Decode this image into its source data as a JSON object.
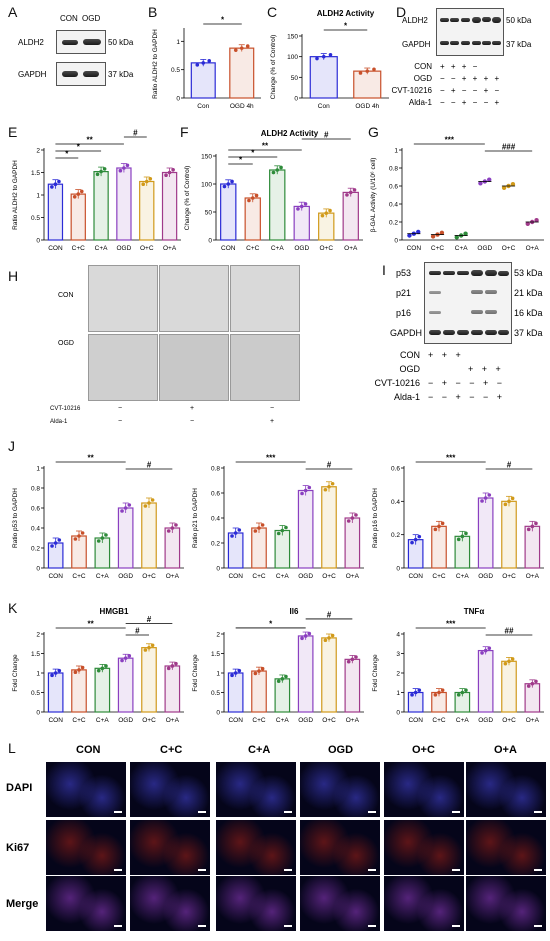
{
  "panels": {
    "A": "A",
    "B": "B",
    "C": "C",
    "D": "D",
    "E": "E",
    "F": "F",
    "G": "G",
    "H": "H",
    "I": "I",
    "J": "J",
    "K": "K",
    "L": "L"
  },
  "blotA": {
    "lanes": [
      "CON",
      "OGD"
    ],
    "rows": [
      "ALDH2",
      "GAPDH"
    ],
    "sizes": [
      "50 kDa",
      "37 kDa"
    ]
  },
  "blotD": {
    "rows": [
      "ALDH2",
      "GAPDH"
    ],
    "sizes": [
      "50 kDa",
      "37 kDa"
    ],
    "conditions": [
      {
        "name": "CON",
        "marks": "+ + + −"
      },
      {
        "name": "OGD",
        "marks": "− − + + + +"
      },
      {
        "name": "CVT-10216",
        "marks": "− + − − + −"
      },
      {
        "name": "Alda-1",
        "marks": "− − + − − +"
      }
    ]
  },
  "blotI": {
    "rows": [
      "p53",
      "p21",
      "p16",
      "GAPDH"
    ],
    "sizes": [
      "53 kDa",
      "21 kDa",
      "16 kDa",
      "37 kDa"
    ],
    "conditions": [
      {
        "name": "CON",
        "marks": "+ + +"
      },
      {
        "name": "OGD",
        "marks": "+ + +"
      },
      {
        "name": "CVT-10216",
        "marks": "− + − − + −"
      },
      {
        "name": "Alda-1",
        "marks": "− − + − − +"
      }
    ]
  },
  "H": {
    "rows": [
      "CON",
      "OGD"
    ],
    "conditions": [
      {
        "name": "CVT-10216",
        "marks": [
          "−",
          "+",
          "−"
        ]
      },
      {
        "name": "Alda-1",
        "marks": [
          "−",
          "−",
          "+"
        ]
      }
    ]
  },
  "L": {
    "columns": [
      "CON",
      "C+C",
      "C+A",
      "OGD",
      "O+C",
      "O+A"
    ],
    "rows": [
      "DAPI",
      "Ki67",
      "Merge"
    ]
  },
  "colors": {
    "CON": "#2b2bd6",
    "C+C": "#c8502a",
    "C+A": "#2e8b3a",
    "OGD": "#8a3fc0",
    "O+C": "#d19a1a",
    "O+A": "#a03a8a"
  },
  "chart_data": [
    {
      "id": "B",
      "type": "bar",
      "title": "",
      "ylabel": "Ratio ALDH2 to GAPDH",
      "categories": [
        "Con",
        "OGD 4h"
      ],
      "values": [
        0.62,
        0.88
      ],
      "ylim": [
        0,
        1.2
      ],
      "yticks": [
        0.0,
        0.5,
        1.0
      ],
      "sig": [
        {
          "from": 0,
          "to": 1,
          "label": "*"
        }
      ],
      "colors": [
        "#2b2bd6",
        "#c8502a"
      ]
    },
    {
      "id": "C",
      "type": "bar",
      "title": "ALDH2 Activity",
      "ylabel": "Change (% of Control)",
      "categories": [
        "Con",
        "OGD 4h"
      ],
      "values": [
        100,
        65
      ],
      "ylim": [
        0,
        150
      ],
      "yticks": [
        0,
        50,
        100,
        150
      ],
      "sig": [
        {
          "from": 0,
          "to": 1,
          "label": "*"
        }
      ],
      "colors": [
        "#2b2bd6",
        "#c8502a"
      ]
    },
    {
      "id": "E",
      "type": "bar",
      "title": "",
      "ylabel": "Ratio ALDH2 to GAPDH",
      "categories": [
        "CON",
        "C+C",
        "C+A",
        "OGD",
        "O+C",
        "O+A"
      ],
      "values": [
        1.24,
        1.02,
        1.52,
        1.6,
        1.3,
        1.5
      ],
      "ylim": [
        0,
        2.0
      ],
      "yticks": [
        0.0,
        0.5,
        1.0,
        1.5,
        2.0
      ],
      "sig": [
        {
          "from": 0,
          "to": 3,
          "label": "**"
        },
        {
          "from": 0,
          "to": 2,
          "label": "*"
        },
        {
          "from": 0,
          "to": 1,
          "label": "*"
        },
        {
          "from": 3,
          "to": 4,
          "label": "#"
        }
      ],
      "colors": [
        "#2b2bd6",
        "#c8502a",
        "#2e8b3a",
        "#8a3fc0",
        "#d19a1a",
        "#a03a8a"
      ]
    },
    {
      "id": "F",
      "type": "bar",
      "title": "ALDH2 Activity",
      "ylabel": "Change (% of Control)",
      "categories": [
        "CON",
        "C+C",
        "C+A",
        "OGD",
        "O+C",
        "O+A"
      ],
      "values": [
        100,
        75,
        125,
        60,
        48,
        85
      ],
      "ylim": [
        0,
        150
      ],
      "yticks": [
        0,
        50,
        100,
        150
      ],
      "sig": [
        {
          "from": 0,
          "to": 3,
          "label": "**"
        },
        {
          "from": 0,
          "to": 2,
          "label": "*"
        },
        {
          "from": 0,
          "to": 1,
          "label": "*"
        },
        {
          "from": 3,
          "to": 5,
          "label": "#"
        }
      ],
      "colors": [
        "#2b2bd6",
        "#c8502a",
        "#2e8b3a",
        "#8a3fc0",
        "#d19a1a",
        "#a03a8a"
      ]
    },
    {
      "id": "G",
      "type": "scatter",
      "title": "",
      "ylabel": "β-GAL Activity (U/10⁶ cell)",
      "categories": [
        "CON",
        "C+C",
        "C+A",
        "OGD",
        "O+C",
        "O+A"
      ],
      "values": [
        0.07,
        0.06,
        0.05,
        0.65,
        0.6,
        0.2
      ],
      "ylim": [
        0,
        1.0
      ],
      "yticks": [
        0.0,
        0.2,
        0.4,
        0.6,
        0.8,
        1.0
      ],
      "sig": [
        {
          "from": 0,
          "to": 3,
          "label": "***"
        },
        {
          "from": 3,
          "to": 5,
          "label": "###"
        }
      ],
      "colors": [
        "#2b2bd6",
        "#c8502a",
        "#2e8b3a",
        "#8a3fc0",
        "#d19a1a",
        "#a03a8a"
      ]
    },
    {
      "id": "J1",
      "type": "bar",
      "title": "",
      "ylabel": "Ratio p53 to GAPDH",
      "categories": [
        "CON",
        "C+C",
        "C+A",
        "OGD",
        "O+C",
        "O+A"
      ],
      "values": [
        0.25,
        0.32,
        0.3,
        0.6,
        0.65,
        0.4
      ],
      "ylim": [
        0,
        1.0
      ],
      "yticks": [
        0.0,
        0.2,
        0.4,
        0.6,
        0.8,
        1.0
      ],
      "sig": [
        {
          "from": 0,
          "to": 3,
          "label": "**"
        },
        {
          "from": 3,
          "to": 5,
          "label": "#"
        }
      ],
      "colors": [
        "#2b2bd6",
        "#c8502a",
        "#2e8b3a",
        "#8a3fc0",
        "#d19a1a",
        "#a03a8a"
      ]
    },
    {
      "id": "J2",
      "type": "bar",
      "title": "",
      "ylabel": "Ratio p21 to GAPDH",
      "categories": [
        "CON",
        "C+C",
        "C+A",
        "OGD",
        "O+C",
        "O+A"
      ],
      "values": [
        0.28,
        0.32,
        0.3,
        0.62,
        0.65,
        0.4
      ],
      "ylim": [
        0,
        0.8
      ],
      "yticks": [
        0.0,
        0.2,
        0.4,
        0.6,
        0.8
      ],
      "sig": [
        {
          "from": 0,
          "to": 3,
          "label": "***"
        },
        {
          "from": 3,
          "to": 5,
          "label": "#"
        }
      ],
      "colors": [
        "#2b2bd6",
        "#c8502a",
        "#2e8b3a",
        "#8a3fc0",
        "#d19a1a",
        "#a03a8a"
      ]
    },
    {
      "id": "J3",
      "type": "bar",
      "title": "",
      "ylabel": "Ratio p16 to GAPDH",
      "categories": [
        "CON",
        "C+C",
        "C+A",
        "OGD",
        "O+C",
        "O+A"
      ],
      "values": [
        0.17,
        0.25,
        0.19,
        0.42,
        0.4,
        0.25
      ],
      "ylim": [
        0,
        0.6
      ],
      "yticks": [
        0.0,
        0.2,
        0.4,
        0.6
      ],
      "sig": [
        {
          "from": 0,
          "to": 3,
          "label": "***"
        },
        {
          "from": 3,
          "to": 5,
          "label": "#"
        }
      ],
      "colors": [
        "#2b2bd6",
        "#c8502a",
        "#2e8b3a",
        "#8a3fc0",
        "#d19a1a",
        "#a03a8a"
      ]
    },
    {
      "id": "K1",
      "type": "bar",
      "title": "HMGB1",
      "ylabel": "Fold Change",
      "categories": [
        "CON",
        "C+C",
        "C+A",
        "OGD",
        "O+C",
        "O+A"
      ],
      "values": [
        1.0,
        1.08,
        1.12,
        1.38,
        1.65,
        1.18
      ],
      "ylim": [
        0,
        2.0
      ],
      "yticks": [
        0.0,
        0.5,
        1.0,
        1.5,
        2.0
      ],
      "sig": [
        {
          "from": 0,
          "to": 3,
          "label": "**"
        },
        {
          "from": 3,
          "to": 4,
          "label": "#"
        },
        {
          "from": 3,
          "to": 5,
          "label": "#"
        }
      ],
      "colors": [
        "#2b2bd6",
        "#c8502a",
        "#2e8b3a",
        "#8a3fc0",
        "#d19a1a",
        "#a03a8a"
      ]
    },
    {
      "id": "K2",
      "type": "bar",
      "title": "Il6",
      "ylabel": "Fold Change",
      "categories": [
        "CON",
        "C+C",
        "C+A",
        "OGD",
        "O+C",
        "O+A"
      ],
      "values": [
        1.0,
        1.05,
        0.85,
        1.95,
        1.9,
        1.35
      ],
      "ylim": [
        0,
        2.0
      ],
      "yticks": [
        0.0,
        0.5,
        1.0,
        1.5,
        2.0
      ],
      "sig": [
        {
          "from": 0,
          "to": 3,
          "label": "*"
        },
        {
          "from": 3,
          "to": 5,
          "label": "#"
        }
      ],
      "colors": [
        "#2b2bd6",
        "#c8502a",
        "#2e8b3a",
        "#8a3fc0",
        "#d19a1a",
        "#a03a8a"
      ]
    },
    {
      "id": "K3",
      "type": "bar",
      "title": "TNFα",
      "ylabel": "Fold Change",
      "categories": [
        "CON",
        "C+C",
        "C+A",
        "OGD",
        "O+C",
        "O+A"
      ],
      "values": [
        1.0,
        1.0,
        1.0,
        3.15,
        2.6,
        1.45
      ],
      "ylim": [
        0,
        4
      ],
      "yticks": [
        0,
        1,
        2,
        3,
        4
      ],
      "sig": [
        {
          "from": 0,
          "to": 3,
          "label": "***"
        },
        {
          "from": 3,
          "to": 5,
          "label": "##"
        }
      ],
      "colors": [
        "#2b2bd6",
        "#c8502a",
        "#2e8b3a",
        "#8a3fc0",
        "#d19a1a",
        "#a03a8a"
      ]
    }
  ]
}
